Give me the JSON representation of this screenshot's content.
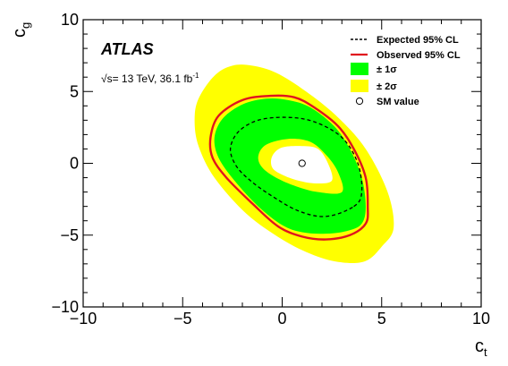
{
  "chart_data": {
    "type": "contour",
    "xlabel": "c",
    "xlabel_sub": "t",
    "ylabel": "c",
    "ylabel_sub": "g",
    "xlim": [
      -10,
      10
    ],
    "ylim": [
      -10,
      10
    ],
    "x_ticks": [
      -10,
      -5,
      0,
      5,
      10
    ],
    "y_ticks": [
      -10,
      -5,
      0,
      5,
      10
    ],
    "x_tick_labels": [
      "−10",
      "−5",
      "0",
      "5",
      "10"
    ],
    "y_tick_labels": [
      "−10",
      "−5",
      "0",
      "5",
      "10"
    ],
    "grid": false,
    "experiment_label": "ATLAS",
    "energy_label": {
      "prefix": "√s= 13 TeV, 36.1 fb",
      "superscript": "-1"
    },
    "legend_position": "top-right",
    "colors": {
      "one_sigma_band": "#00ff00",
      "two_sigma_band": "#ffff00",
      "observed": "#e0141e",
      "expected": "#000000"
    },
    "series": [
      {
        "name": "Expected 95% CL",
        "style": "dashed",
        "points": [
          [
            3.6,
            -3.0
          ],
          [
            4.0,
            -2.0
          ],
          [
            3.8,
            0.0
          ],
          [
            3.0,
            1.8
          ],
          [
            1.6,
            2.9
          ],
          [
            0.2,
            3.2
          ],
          [
            -1.2,
            3.0
          ],
          [
            -2.2,
            2.2
          ],
          [
            -2.6,
            1.0
          ],
          [
            -2.3,
            -0.2
          ],
          [
            -1.6,
            -1.2
          ],
          [
            -0.6,
            -2.2
          ],
          [
            0.8,
            -3.3
          ],
          [
            2.2,
            -3.7
          ]
        ]
      },
      {
        "name": "Observed 95% CL",
        "style": "solid",
        "points": [
          [
            4.2,
            -4.2
          ],
          [
            4.3,
            -3.0
          ],
          [
            4.2,
            -1.0
          ],
          [
            3.6,
            1.0
          ],
          [
            2.8,
            2.6
          ],
          [
            1.6,
            3.9
          ],
          [
            0.6,
            4.6
          ],
          [
            -0.6,
            4.7
          ],
          [
            -2.0,
            4.4
          ],
          [
            -3.2,
            3.3
          ],
          [
            -3.6,
            1.8
          ],
          [
            -3.5,
            0.4
          ],
          [
            -2.8,
            -1.0
          ],
          [
            -1.5,
            -2.8
          ],
          [
            -0.2,
            -4.4
          ],
          [
            1.0,
            -5.1
          ],
          [
            2.2,
            -5.3
          ],
          [
            3.4,
            -5.0
          ]
        ]
      }
    ],
    "bands": [
      {
        "name": "± 1σ",
        "outer": [
          [
            4.0,
            -4.2
          ],
          [
            4.2,
            -3.0
          ],
          [
            4.0,
            -1.0
          ],
          [
            3.4,
            1.0
          ],
          [
            2.6,
            2.6
          ],
          [
            1.4,
            3.9
          ],
          [
            0.3,
            4.4
          ],
          [
            -0.8,
            4.5
          ],
          [
            -2.0,
            4.1
          ],
          [
            -3.0,
            3.1
          ],
          [
            -3.4,
            1.8
          ],
          [
            -3.2,
            0.4
          ],
          [
            -2.4,
            -1.2
          ],
          [
            -1.2,
            -3.0
          ],
          [
            0.0,
            -4.3
          ],
          [
            1.0,
            -4.8
          ],
          [
            2.2,
            -4.9
          ],
          [
            3.3,
            -4.7
          ]
        ],
        "inner": [
          [
            3.0,
            -2.0
          ],
          [
            2.8,
            -0.6
          ],
          [
            2.2,
            0.6
          ],
          [
            1.4,
            1.5
          ],
          [
            0.3,
            1.7
          ],
          [
            -0.8,
            1.3
          ],
          [
            -1.2,
            0.5
          ],
          [
            -1.0,
            -0.3
          ],
          [
            -0.3,
            -1.0
          ],
          [
            0.7,
            -1.6
          ],
          [
            1.8,
            -2.0
          ]
        ]
      },
      {
        "name": "± 2σ",
        "outer": [
          [
            5.0,
            -5.8
          ],
          [
            5.6,
            -4.5
          ],
          [
            5.3,
            -2.0
          ],
          [
            4.2,
            1.0
          ],
          [
            2.8,
            3.2
          ],
          [
            1.2,
            5.0
          ],
          [
            -0.3,
            6.3
          ],
          [
            -1.5,
            6.8
          ],
          [
            -2.5,
            6.8
          ],
          [
            -3.4,
            6.1
          ],
          [
            -4.2,
            4.5
          ],
          [
            -4.4,
            3.0
          ],
          [
            -4.2,
            1.2
          ],
          [
            -3.4,
            -1.0
          ],
          [
            -1.8,
            -3.5
          ],
          [
            0.0,
            -5.3
          ],
          [
            1.6,
            -6.4
          ],
          [
            3.0,
            -6.9
          ],
          [
            4.2,
            -6.8
          ]
        ],
        "inner": [
          [
            2.5,
            -1.2
          ],
          [
            2.3,
            0.0
          ],
          [
            1.8,
            1.0
          ],
          [
            1.0,
            1.2
          ],
          [
            0.0,
            1.1
          ],
          [
            -0.5,
            0.5
          ],
          [
            -0.5,
            -0.3
          ],
          [
            0.0,
            -0.8
          ],
          [
            0.8,
            -1.2
          ],
          [
            1.7,
            -1.4
          ]
        ]
      }
    ],
    "sm_value": {
      "name": "SM value",
      "x": 1,
      "y": 0
    },
    "legend": [
      {
        "label": "Expected 95% CL",
        "kind": "dashed-line"
      },
      {
        "label": "Observed 95% CL",
        "kind": "red-line"
      },
      {
        "label": "± 1σ",
        "kind": "green-box"
      },
      {
        "label": "± 2σ",
        "kind": "yellow-box"
      },
      {
        "label": "SM value",
        "kind": "open-circle"
      }
    ]
  }
}
